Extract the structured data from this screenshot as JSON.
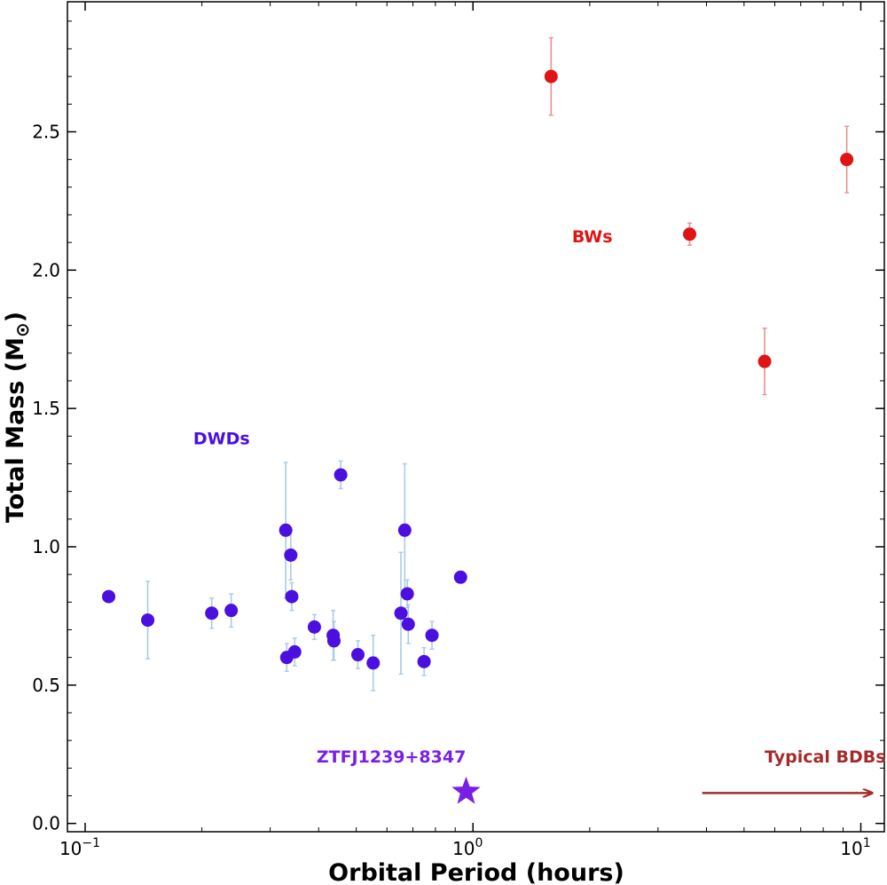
{
  "chart_data": {
    "type": "scatter",
    "xlabel": "Orbital Period (hours)",
    "ylabel_main": "Total Mass (M",
    "ylabel_sym": "⊙",
    "ylabel_close": ")",
    "x_scale": "log",
    "xlim": [
      0.09,
      11.5
    ],
    "ylim": [
      -0.03,
      2.97
    ],
    "x_ticks": [
      {
        "value": 0.1,
        "base": "10",
        "exp": "−1"
      },
      {
        "value": 1,
        "base": "10",
        "exp": "0"
      },
      {
        "value": 10,
        "base": "10",
        "exp": "1"
      }
    ],
    "y_ticks": [
      "0.0",
      "0.5",
      "1.0",
      "1.5",
      "2.0",
      "2.5"
    ],
    "grid": false,
    "series": [
      {
        "name": "DWDs",
        "color": "#4b0fe0",
        "errcolor": "#a9cbe6",
        "points": [
          {
            "x": 0.115,
            "y": 0.82,
            "err": 0.0
          },
          {
            "x": 0.145,
            "y": 0.735,
            "err": 0.14
          },
          {
            "x": 0.212,
            "y": 0.76,
            "err": 0.055
          },
          {
            "x": 0.238,
            "y": 0.77,
            "err": 0.06
          },
          {
            "x": 0.329,
            "y": 1.06,
            "err": 0.245
          },
          {
            "x": 0.331,
            "y": 0.6,
            "err": 0.05
          },
          {
            "x": 0.339,
            "y": 0.97,
            "err": 0.09
          },
          {
            "x": 0.341,
            "y": 0.82,
            "err": 0.05
          },
          {
            "x": 0.347,
            "y": 0.62,
            "err": 0.05
          },
          {
            "x": 0.39,
            "y": 0.71,
            "err": 0.045
          },
          {
            "x": 0.436,
            "y": 0.68,
            "err": 0.09
          },
          {
            "x": 0.438,
            "y": 0.66,
            "err": 0.07
          },
          {
            "x": 0.456,
            "y": 1.26,
            "err": 0.05
          },
          {
            "x": 0.505,
            "y": 0.61,
            "err": 0.05
          },
          {
            "x": 0.553,
            "y": 0.58,
            "err": 0.1
          },
          {
            "x": 0.652,
            "y": 0.76,
            "err": 0.22
          },
          {
            "x": 0.667,
            "y": 1.06,
            "err": 0.24
          },
          {
            "x": 0.677,
            "y": 0.83,
            "err": 0.05
          },
          {
            "x": 0.681,
            "y": 0.72,
            "err": 0.07
          },
          {
            "x": 0.748,
            "y": 0.585,
            "err": 0.05
          },
          {
            "x": 0.784,
            "y": 0.68,
            "err": 0.05
          },
          {
            "x": 0.929,
            "y": 0.89,
            "err": 0.02
          }
        ]
      },
      {
        "name": "BWs",
        "color": "#e01414",
        "errcolor": "#eb8f8f",
        "points": [
          {
            "x": 1.59,
            "y": 2.7,
            "err": 0.14
          },
          {
            "x": 3.62,
            "y": 2.13,
            "err": 0.04
          },
          {
            "x": 5.65,
            "y": 1.67,
            "err": 0.12
          },
          {
            "x": 9.2,
            "y": 2.4,
            "err": 0.12
          }
        ]
      },
      {
        "name": "ZTFJ1239+8347",
        "color": "#7a1fe8",
        "marker": "star",
        "points": [
          {
            "x": 0.96,
            "y": 0.115
          }
        ]
      }
    ],
    "annotations": {
      "dwds": {
        "text": "DWDs",
        "color": "#4b0fe0",
        "x": 0.19,
        "y": 1.37
      },
      "bws": {
        "text": "BWs",
        "color": "#e01414",
        "x": 1.8,
        "y": 2.1
      },
      "ztf": {
        "text": "ZTFJ1239+8347",
        "color": "#7a1fe8",
        "x": 0.395,
        "y": 0.22
      },
      "bdbs": {
        "text": "Typical BDBs",
        "color": "#a52a2a",
        "x": 5.65,
        "y": 0.22
      },
      "bdbs_arrow": {
        "x_from": 3.9,
        "x_to": 10.7,
        "y": 0.11,
        "color": "#a52a2a"
      }
    }
  }
}
